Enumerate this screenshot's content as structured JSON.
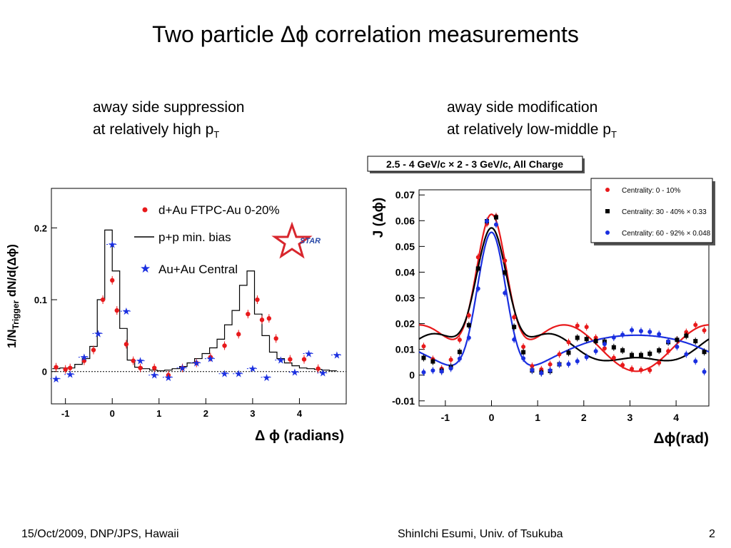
{
  "slide": {
    "title": "Two particle Δϕ correlation measurements",
    "left_subhead_line1": "away side suppression",
    "left_subhead_line2": "at relatively high p",
    "left_subhead_sub": "T",
    "right_subhead_line1": "away side modification",
    "right_subhead_line2": "at relatively low-middle p",
    "right_subhead_sub": "T",
    "footer_left": "15/Oct/2009, DNP/JPS, Hawaii",
    "footer_center": "ShinIchi Esumi, Univ. of Tsukuba",
    "footer_right": "2"
  },
  "colors": {
    "red": "#e8191b",
    "blue": "#1a2fe0",
    "black": "#000000"
  },
  "chart_data": [
    {
      "type": "scatter",
      "ylabel_main": "1/N",
      "ylabel_sub": "Trigger",
      "ylabel_rest": " dN/d(Δϕ)",
      "xlabel": "Δ  ϕ (radians)",
      "xlim": [
        -1.3,
        5.0
      ],
      "ylim": [
        -0.045,
        0.255
      ],
      "x_ticks": [
        -1,
        0,
        1,
        2,
        3,
        4
      ],
      "y_ticks": [
        0,
        0.1,
        0.2
      ],
      "y_tick_labels": [
        "0",
        "0.1",
        "0.2"
      ],
      "logo": "STAR",
      "legend_position": "top-right",
      "series": [
        {
          "name": "d+Au FTPC-Au 0-20%",
          "marker": "circle",
          "color": "#e8191b",
          "x": [
            -1.2,
            -1.0,
            -0.9,
            -0.6,
            -0.4,
            -0.2,
            0.0,
            0.1,
            0.3,
            0.45,
            0.6,
            0.9,
            1.2,
            1.5,
            1.8,
            2.1,
            2.4,
            2.7,
            2.9,
            3.1,
            3.2,
            3.35,
            3.5,
            3.8,
            4.1,
            4.4
          ],
          "y": [
            0.006,
            0.003,
            0.005,
            0.015,
            0.03,
            0.1,
            0.127,
            0.085,
            0.038,
            0.015,
            0.005,
            0.005,
            -0.005,
            0.005,
            0.012,
            0.02,
            0.036,
            0.052,
            0.08,
            0.1,
            0.072,
            0.074,
            0.046,
            0.017,
            0.017,
            0.004
          ]
        },
        {
          "name": "p+p min. bias",
          "marker": "histogram",
          "color": "#000000",
          "bin_edges": [
            -1.28,
            -1.12,
            -0.96,
            -0.8,
            -0.64,
            -0.48,
            -0.32,
            -0.16,
            0.0,
            0.16,
            0.32,
            0.48,
            0.64,
            0.8,
            0.96,
            1.12,
            1.28,
            1.44,
            1.6,
            1.76,
            1.92,
            2.08,
            2.24,
            2.4,
            2.56,
            2.72,
            2.88,
            3.04,
            3.2,
            3.36,
            3.52,
            3.68,
            3.84,
            4.0,
            4.16,
            4.32,
            4.48,
            4.64,
            4.8
          ],
          "values": [
            0.004,
            0.005,
            0.005,
            0.01,
            0.018,
            0.035,
            0.1,
            0.197,
            0.14,
            0.06,
            0.016,
            0.006,
            0.004,
            0.002,
            0.001,
            0.002,
            0.004,
            0.007,
            0.012,
            0.018,
            0.025,
            0.033,
            0.045,
            0.065,
            0.085,
            0.12,
            0.14,
            0.08,
            0.05,
            0.027,
            0.018,
            0.012,
            0.008,
            0.005,
            0.004,
            0.003,
            0.002,
            0.001
          ]
        },
        {
          "name": "Au+Au Central",
          "marker": "star",
          "color": "#1a2fe0",
          "x": [
            -1.2,
            -0.9,
            -0.6,
            -0.3,
            0.0,
            0.3,
            0.6,
            0.9,
            1.2,
            1.5,
            1.8,
            2.1,
            2.4,
            2.7,
            3.0,
            3.3,
            3.6,
            3.9,
            4.2,
            4.5,
            4.8
          ],
          "y": [
            -0.01,
            -0.004,
            0.02,
            0.053,
            0.177,
            0.084,
            0.015,
            -0.005,
            -0.008,
            0.005,
            0.012,
            0.018,
            -0.003,
            -0.003,
            0.004,
            -0.008,
            0.016,
            -0.001,
            0.025,
            -0.002,
            0.023
          ]
        }
      ],
      "zero_line": true
    },
    {
      "type": "line",
      "ylabel": "J (Δϕ)",
      "xlabel": "Δϕ(rad)",
      "header_box": "2.5 - 4 GeV/c × 2 - 3 GeV/c,  All Charge",
      "xlim": [
        -1.57,
        4.71
      ],
      "ylim": [
        -0.012,
        0.072
      ],
      "x_ticks": [
        -1,
        0,
        1,
        2,
        3,
        4
      ],
      "y_ticks": [
        -0.01,
        0,
        0.01,
        0.02,
        0.03,
        0.04,
        0.05,
        0.06,
        0.07
      ],
      "y_tick_labels": [
        "-0.01",
        "0",
        "0.01",
        "0.02",
        "0.03",
        "0.04",
        "0.05",
        "0.06",
        "0.07"
      ],
      "legend_position": "top-right",
      "series": [
        {
          "name": "Centrality:  0 - 10%",
          "marker": "circle",
          "color": "#e8191b",
          "x": [
            -1.47,
            -1.27,
            -1.08,
            -0.88,
            -0.69,
            -0.49,
            -0.29,
            -0.1,
            0.1,
            0.29,
            0.49,
            0.69,
            0.88,
            1.08,
            1.27,
            1.47,
            1.67,
            1.86,
            2.06,
            2.26,
            2.45,
            2.65,
            2.84,
            3.04,
            3.24,
            3.43,
            3.63,
            3.83,
            4.02,
            4.22,
            4.42,
            4.61
          ],
          "y": [
            0.0112,
            0.0062,
            0.0025,
            0.006,
            0.0137,
            0.0232,
            0.0458,
            0.0588,
            0.0617,
            0.0445,
            0.0225,
            0.011,
            0.0035,
            0.0022,
            0.0042,
            0.0081,
            0.0128,
            0.0192,
            0.0187,
            0.0145,
            0.0104,
            0.0067,
            0.0039,
            0.0024,
            0.002,
            0.0019,
            0.0048,
            0.0093,
            0.0138,
            0.0167,
            0.0195,
            0.0174
          ]
        },
        {
          "name": "Centrality: 30 - 40% × 0.33",
          "marker": "square",
          "color": "#000000",
          "x": [
            -1.47,
            -1.27,
            -1.08,
            -0.88,
            -0.69,
            -0.49,
            -0.29,
            -0.1,
            0.1,
            0.29,
            0.49,
            0.69,
            0.88,
            1.08,
            1.27,
            1.47,
            1.67,
            1.86,
            2.06,
            2.26,
            2.45,
            2.65,
            2.84,
            3.04,
            3.24,
            3.43,
            3.63,
            3.83,
            4.02,
            4.22,
            4.42,
            4.61
          ],
          "y": [
            0.0067,
            0.0053,
            0.0017,
            0.0032,
            0.009,
            0.0194,
            0.0414,
            0.0598,
            0.0613,
            0.0399,
            0.0187,
            0.0089,
            0.0018,
            0.001,
            0.0016,
            0.0042,
            0.0087,
            0.0145,
            0.014,
            0.0132,
            0.013,
            0.0108,
            0.0096,
            0.0078,
            0.0078,
            0.0083,
            0.0096,
            0.0128,
            0.0137,
            0.0153,
            0.0132,
            0.009
          ]
        },
        {
          "name": "Centrality: 60 - 92% × 0.048",
          "marker": "circle",
          "color": "#1a2fe0",
          "x": [
            -1.47,
            -1.27,
            -1.08,
            -0.88,
            -0.69,
            -0.49,
            -0.29,
            -0.1,
            0.1,
            0.29,
            0.49,
            0.69,
            0.88,
            1.08,
            1.27,
            1.47,
            1.67,
            1.86,
            2.06,
            2.26,
            2.45,
            2.65,
            2.84,
            3.04,
            3.24,
            3.43,
            3.63,
            3.83,
            4.02,
            4.22,
            4.42,
            4.61
          ],
          "y": [
            0.0011,
            0.0018,
            0.0014,
            0.0026,
            0.0064,
            0.0145,
            0.0336,
            0.0598,
            0.0585,
            0.0319,
            0.0138,
            0.0065,
            0.0019,
            0.0008,
            0.0018,
            0.0042,
            0.0043,
            0.0054,
            0.007,
            0.0093,
            0.0121,
            0.0146,
            0.0157,
            0.0175,
            0.0171,
            0.0168,
            0.0159,
            0.0131,
            0.011,
            0.0081,
            0.0054,
            0.0013
          ]
        }
      ],
      "fit_curves": [
        {
          "color": "#e8191b",
          "a": 0.061,
          "sigma": 0.33,
          "bg": 0.0105,
          "c2": -0.009
        },
        {
          "color": "#000000",
          "a": 0.058,
          "sigma": 0.34,
          "bg": 0.0085,
          "c2": -0.0055,
          "c3": -0.0038
        },
        {
          "color": "#1a2fe0",
          "a": 0.057,
          "sigma": 0.31,
          "bg": 0.008,
          "c1": -0.0085,
          "c2": -0.001
        }
      ]
    }
  ]
}
